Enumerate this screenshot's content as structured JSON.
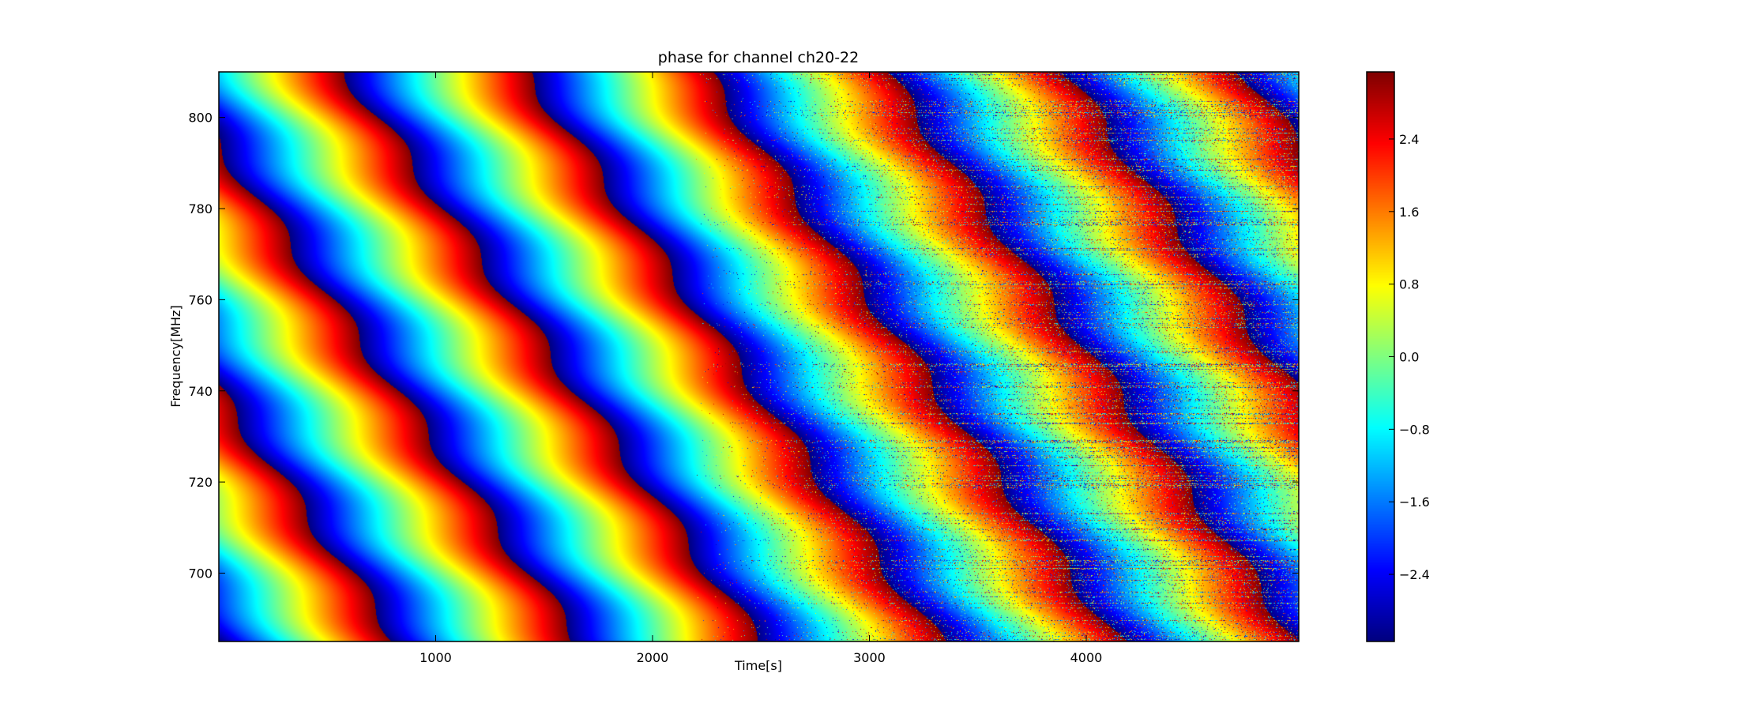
{
  "chart_data": {
    "type": "heatmap",
    "title": "phase for channel ch20-22",
    "xlabel": "Time[s]",
    "ylabel": "Frequency[MHz]",
    "xlim": [
      0,
      4980
    ],
    "ylim": [
      685,
      810
    ],
    "x_ticks": [
      1000,
      2000,
      3000,
      4000
    ],
    "x_tick_labels": [
      "1000",
      "2000",
      "3000",
      "4000"
    ],
    "y_ticks": [
      700,
      720,
      740,
      760,
      780,
      800
    ],
    "y_tick_labels": [
      "700",
      "720",
      "740",
      "760",
      "780",
      "800"
    ],
    "colorbar": {
      "colormap": "jet",
      "range": [
        -3.14,
        3.14
      ],
      "ticks": [
        2.4,
        1.6,
        0.8,
        0.0,
        -0.8,
        -1.6,
        -2.4
      ],
      "tick_labels": [
        "2.4",
        "1.6",
        "0.8",
        "0.0",
        "−0.8",
        "−1.6",
        "−2.4"
      ]
    },
    "pattern": {
      "description_value": "wrapped phase increasing linearly with time and frequency",
      "phase_wraps_across_x": 6,
      "phase_wraps_across_y": 2.3,
      "noise_onset_time": 2200
    },
    "grid": false
  }
}
